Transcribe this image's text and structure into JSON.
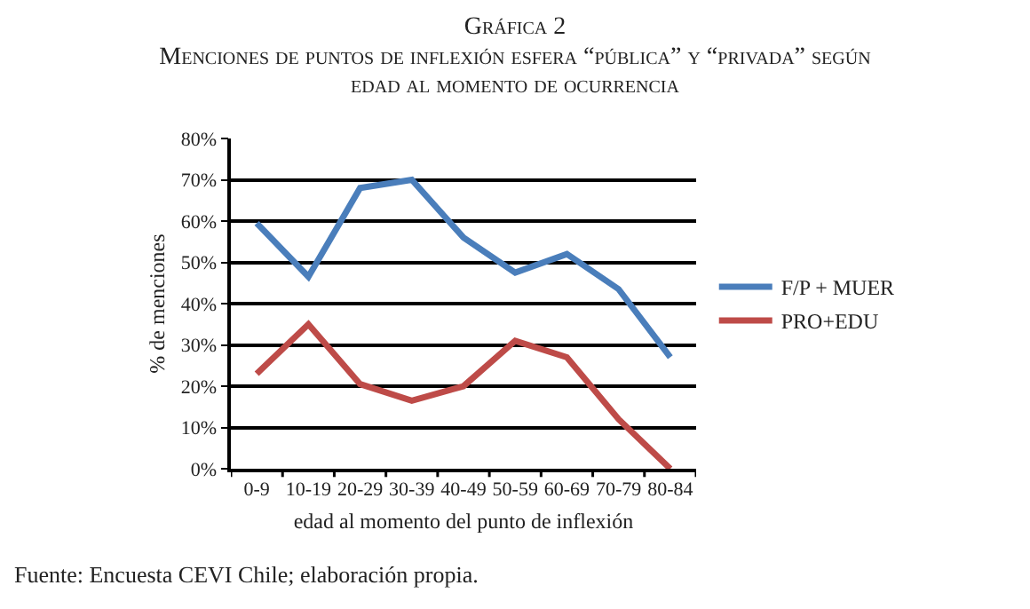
{
  "chart_data": {
    "type": "line",
    "title": "Gráfica 2",
    "subtitle": "Menciones de puntos de inflexión esfera “pública” y “privada” según edad al momento de ocurrencia",
    "xlabel": "edad al momento del punto de inflexión",
    "ylabel": "% de menciones",
    "categories": [
      "0-9",
      "10-19",
      "20-29",
      "30-39",
      "40-49",
      "50-59",
      "60-69",
      "70-79",
      "80-84"
    ],
    "series": [
      {
        "name": "F/P + MUER",
        "color": "#4a7ebb",
        "values": [
          59.5,
          46.5,
          68,
          70,
          56,
          47.5,
          52,
          43.5,
          27
        ]
      },
      {
        "name": "PRO+EDU",
        "color": "#be4b48",
        "values": [
          23,
          35,
          20.5,
          16.5,
          20,
          31,
          27,
          12,
          0
        ]
      }
    ],
    "ylim": [
      0,
      80
    ],
    "yticks": [
      {
        "value": 0,
        "label": "0%"
      },
      {
        "value": 10,
        "label": "10%"
      },
      {
        "value": 20,
        "label": "20%"
      },
      {
        "value": 30,
        "label": "30%"
      },
      {
        "value": 40,
        "label": "40%"
      },
      {
        "value": 50,
        "label": "50%"
      },
      {
        "value": 60,
        "label": "60%"
      },
      {
        "value": 70,
        "label": "70%"
      },
      {
        "value": 80,
        "label": "80%"
      }
    ],
    "grid": "y",
    "legend": "right",
    "marker": "none",
    "line_style": "solid",
    "annotations": [
      "Fuente: Encuesta CEVI Chile; elaboración propia."
    ]
  }
}
